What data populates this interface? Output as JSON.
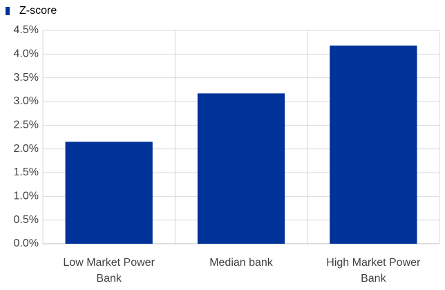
{
  "chart_data": {
    "type": "bar",
    "categories": [
      "Low Market Power Bank",
      "Median bank",
      "High Market Power Bank"
    ],
    "series": [
      {
        "name": "Z-score",
        "color": "#003299",
        "values": [
          2.15,
          3.17,
          4.18
        ]
      }
    ],
    "ylim": [
      0,
      4.5
    ],
    "yticks": [
      {
        "value": 0,
        "label": "0.0%"
      },
      {
        "value": 0.5,
        "label": "0.5%"
      },
      {
        "value": 1,
        "label": "1.0%"
      },
      {
        "value": 1.5,
        "label": "1.5%"
      },
      {
        "value": 2,
        "label": "2.0%"
      },
      {
        "value": 2.5,
        "label": "2.5%"
      },
      {
        "value": 3,
        "label": "3.0%"
      },
      {
        "value": 3.5,
        "label": "3.5%"
      },
      {
        "value": 4,
        "label": "4.0%"
      },
      {
        "value": 4.5,
        "label": "4.5%"
      }
    ],
    "grid": true,
    "legend": "top-left"
  }
}
